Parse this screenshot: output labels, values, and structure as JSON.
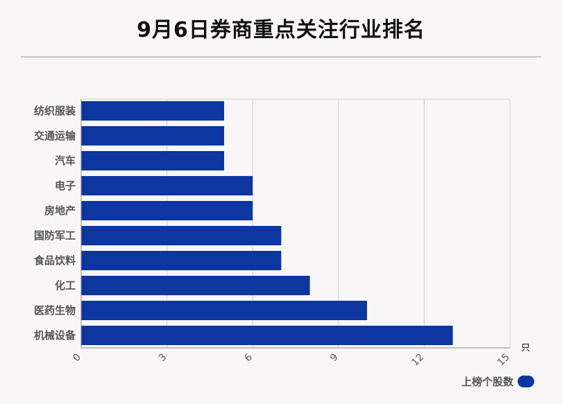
{
  "title": "9月6日券商重点关注行业排名",
  "colors": {
    "bar": "#0d36a0",
    "axis": "#888888",
    "grid": "#cfcfcf"
  },
  "chart_data": {
    "type": "bar",
    "orientation": "horizontal",
    "title": "9月6日券商重点关注行业排名",
    "categories": [
      "纺织服装",
      "交通运输",
      "汽车",
      "电子",
      "房地产",
      "国防军工",
      "食品饮料",
      "化工",
      "医药生物",
      "机械设备"
    ],
    "series": [
      {
        "name": "上榜个股数",
        "values": [
          5,
          5,
          5,
          6,
          6,
          7,
          7,
          8,
          10,
          13
        ]
      }
    ],
    "x_ticks": [
      0,
      3,
      6,
      9,
      12,
      15
    ],
    "xlim": [
      0,
      15
    ],
    "x_unit": "只",
    "grid": true,
    "legend_position": "bottom-right"
  }
}
